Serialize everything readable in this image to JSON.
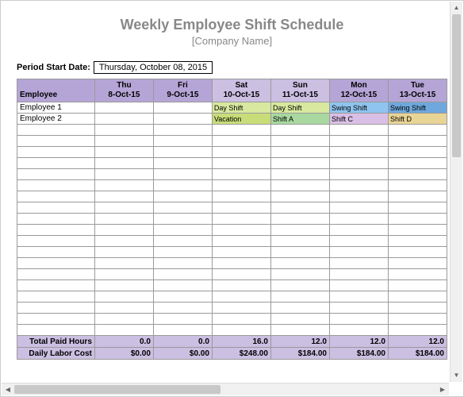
{
  "title": "Weekly Employee Shift Schedule",
  "subtitle": "[Company Name]",
  "period": {
    "label": "Period Start Date:",
    "value": "Thursday, October 08, 2015"
  },
  "colors": {
    "header_bg": "#b5a5d6",
    "header_sat": "#cbbfe2",
    "header_sun": "#cbbfe2",
    "footer_bg": "#cbbfe2",
    "day_shift": "#d8e89e",
    "vacation": "#c8dd7a",
    "shift_a": "#a8d8a0",
    "swing_shift_mon": "#8fc4ef",
    "shift_c": "#d9bfe5",
    "swing_shift_tue": "#6fa8dc",
    "shift_d": "#e8d494",
    "border": "#9a9a9a"
  },
  "columns": [
    {
      "label": "Employee",
      "sub": ""
    },
    {
      "label": "Thu",
      "sub": "8-Oct-15"
    },
    {
      "label": "Fri",
      "sub": "9-Oct-15"
    },
    {
      "label": "Sat",
      "sub": "10-Oct-15"
    },
    {
      "label": "Sun",
      "sub": "11-Oct-15"
    },
    {
      "label": "Mon",
      "sub": "12-Oct-15"
    },
    {
      "label": "Tue",
      "sub": "13-Oct-15"
    }
  ],
  "rows": [
    {
      "employee": "Employee 1",
      "cells": [
        {
          "text": "",
          "bg": ""
        },
        {
          "text": "",
          "bg": ""
        },
        {
          "text": "Day Shift",
          "bg": "#d8e89e"
        },
        {
          "text": "Day Shift",
          "bg": "#d8e89e"
        },
        {
          "text": "Swing Shift",
          "bg": "#8fc4ef"
        },
        {
          "text": "Swing Shift",
          "bg": "#6fa8dc"
        }
      ]
    },
    {
      "employee": "Employee 2",
      "cells": [
        {
          "text": "",
          "bg": ""
        },
        {
          "text": "",
          "bg": ""
        },
        {
          "text": "Vacation",
          "bg": "#c8dd7a"
        },
        {
          "text": "Shift A",
          "bg": "#a8d8a0"
        },
        {
          "text": "Shift C",
          "bg": "#d9bfe5"
        },
        {
          "text": "Shift D",
          "bg": "#e8d494"
        }
      ]
    }
  ],
  "empty_rows": 19,
  "footer": {
    "total_hours": {
      "label": "Total Paid Hours",
      "values": [
        "0.0",
        "0.0",
        "16.0",
        "12.0",
        "12.0",
        "12.0"
      ]
    },
    "labor_cost": {
      "label": "Daily Labor Cost",
      "values": [
        "$0.00",
        "$0.00",
        "$248.00",
        "$184.00",
        "$184.00",
        "$184.00"
      ]
    }
  }
}
